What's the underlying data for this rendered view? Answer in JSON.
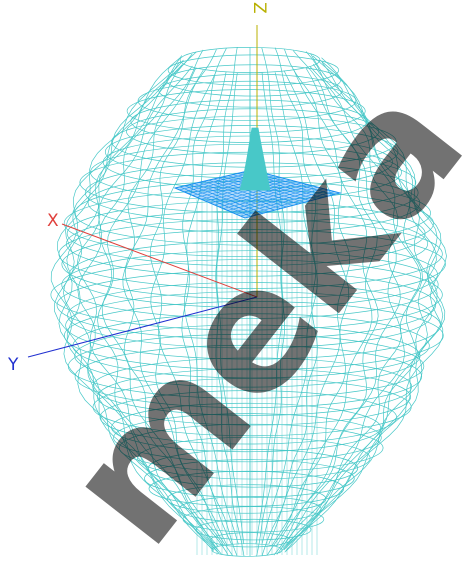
{
  "axes": {
    "x": {
      "label": "X",
      "color": "#e0403c"
    },
    "y": {
      "label": "Y",
      "color": "#2030d0"
    },
    "z": {
      "label": "Z",
      "color": "#b8b000"
    }
  },
  "colors": {
    "mesh": "#48c8c8",
    "ground_plane": "#1890f0",
    "patch": "#48c8c8",
    "watermark": "#000000"
  },
  "watermark": {
    "text": "meka"
  }
}
